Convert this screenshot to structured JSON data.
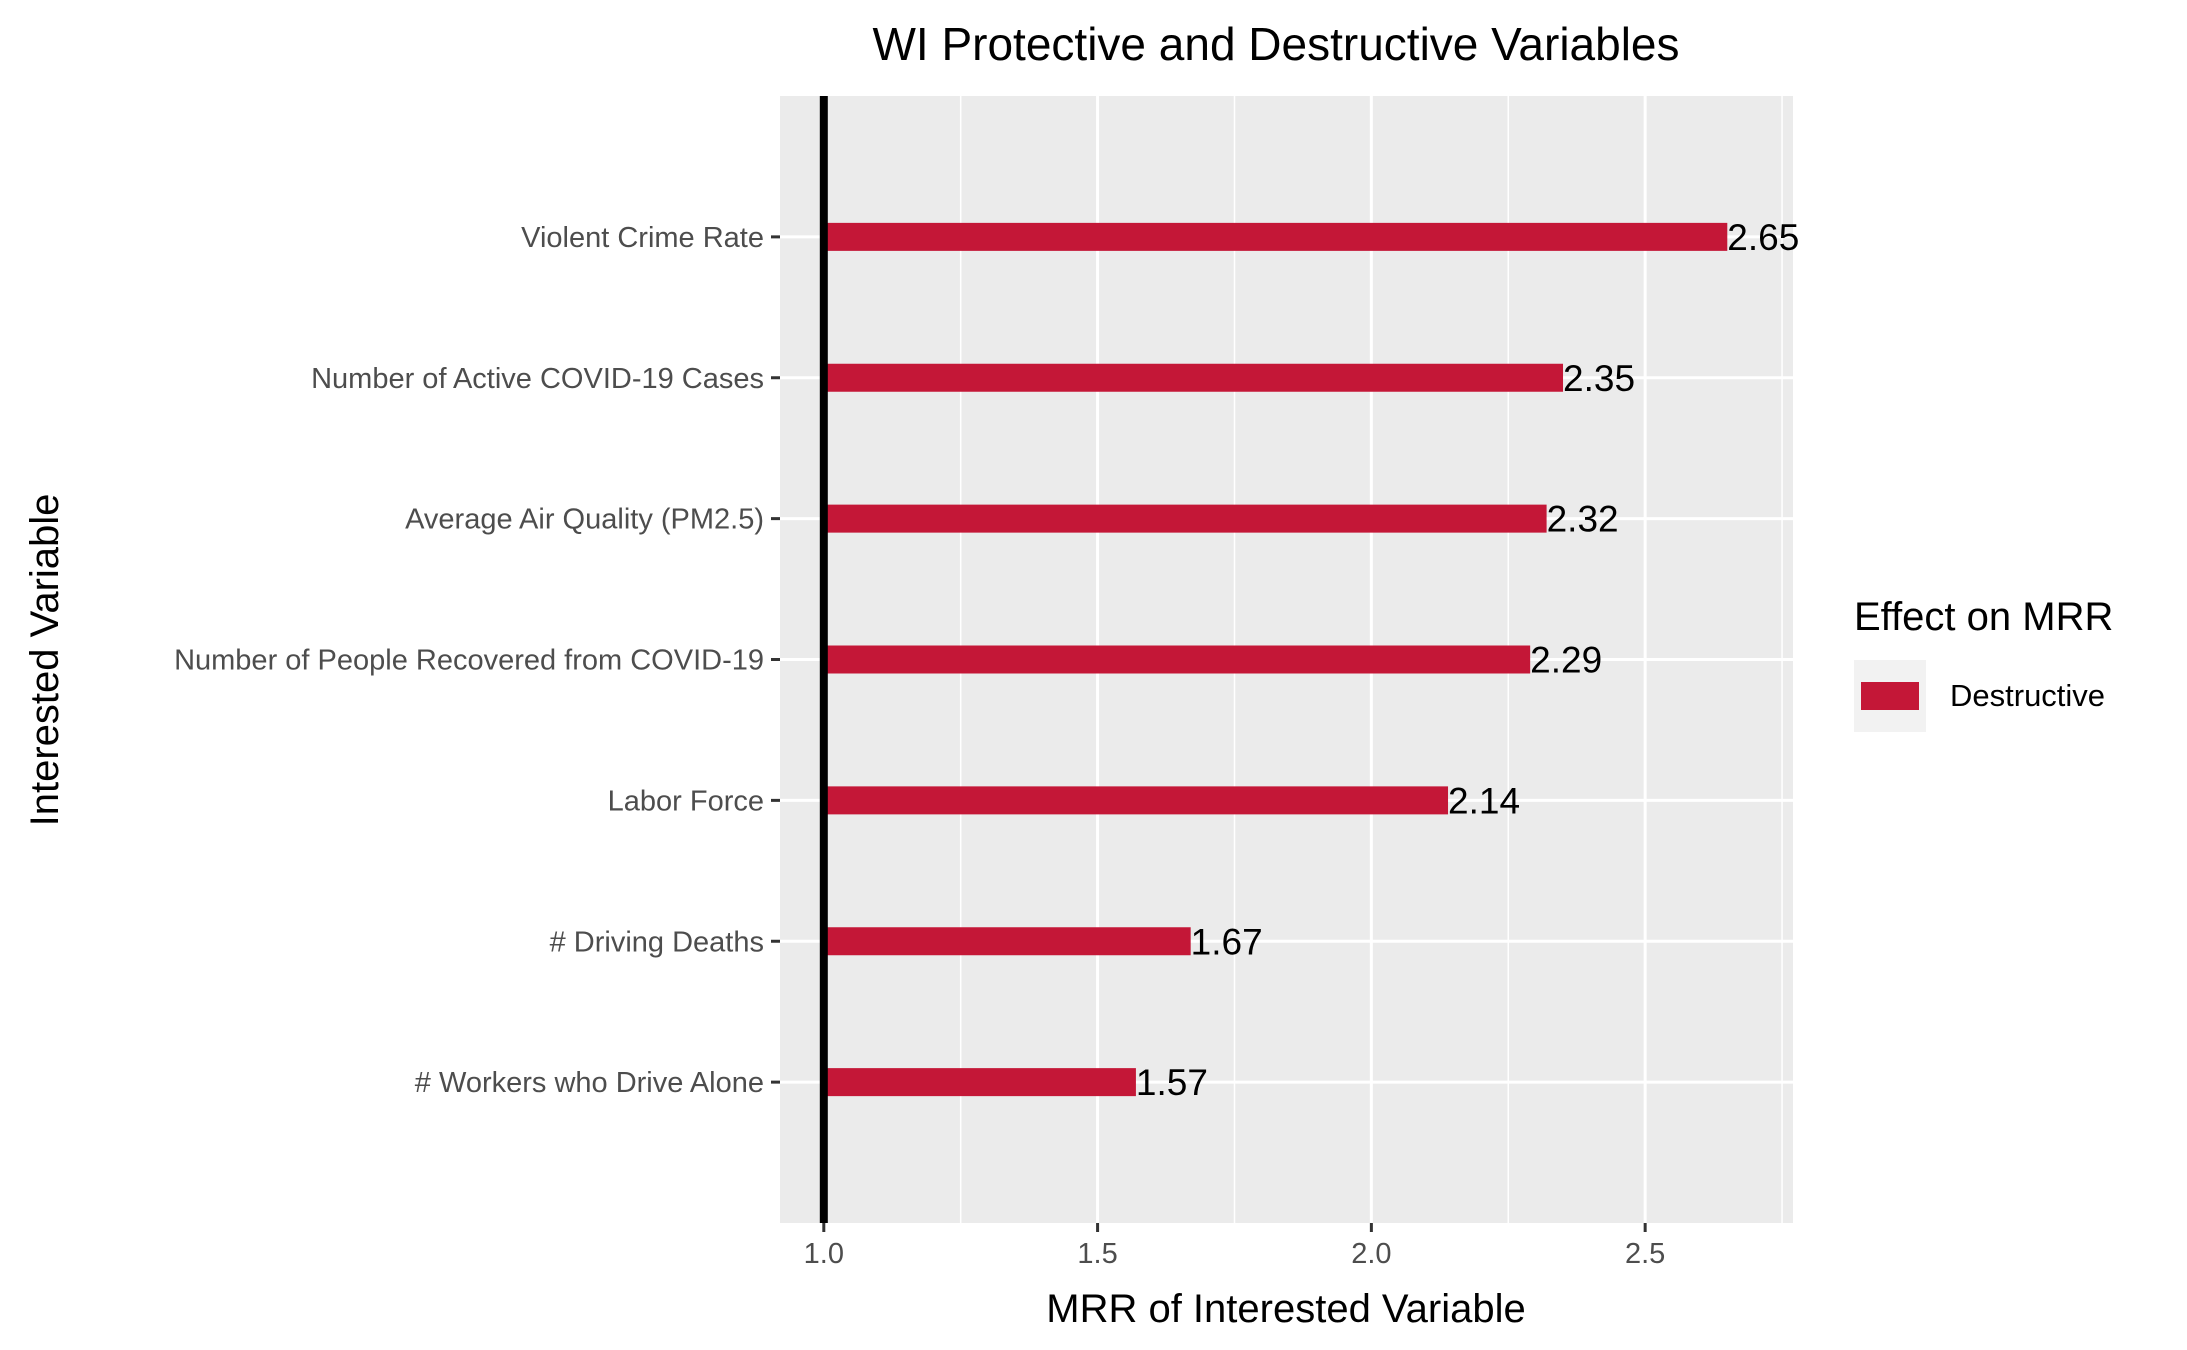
{
  "chart_data": {
    "type": "bar",
    "orientation": "horizontal",
    "title": "WI Protective and Destructive Variables",
    "xlabel": "MRR of Interested Variable",
    "ylabel": "Interested Variable",
    "categories": [
      "Violent Crime Rate",
      "Number of Active COVID-19 Cases",
      "Average Air Quality (PM2.5)",
      "Number of People Recovered from COVID-19",
      "Labor Force",
      "# Driving Deaths",
      "# Workers who Drive Alone"
    ],
    "series": [
      {
        "name": "Destructive",
        "values": [
          2.65,
          2.35,
          2.32,
          2.29,
          2.14,
          1.67,
          1.57
        ],
        "labels": [
          "2.65",
          "2.35",
          "2.32",
          "2.29",
          "2.14",
          "1.67",
          "1.57"
        ],
        "color": "#C41737"
      }
    ],
    "baseline": 1.0,
    "xlim": [
      0.92,
      2.77
    ],
    "xticks": [
      1.0,
      1.5,
      2.0,
      2.5
    ],
    "xtick_labels": [
      "1.0",
      "1.5",
      "2.0",
      "2.5"
    ],
    "grid": true,
    "legend": {
      "title": "Effect on MRR",
      "position": "right",
      "entries": [
        {
          "label": "Destructive",
          "color": "#C41737"
        }
      ]
    },
    "colors": {
      "panel_background": "#EBEBEB",
      "grid_line": "#FFFFFF",
      "baseline": "#000000"
    }
  }
}
